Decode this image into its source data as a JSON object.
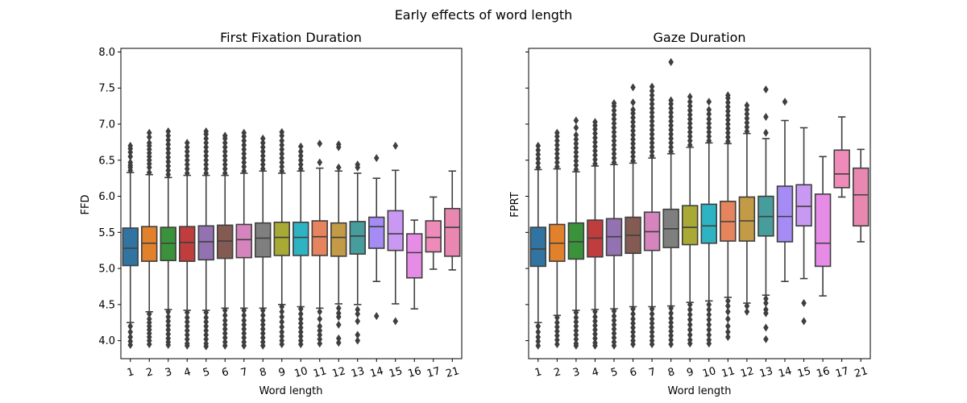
{
  "figure": {
    "title": "Early effects of word length"
  },
  "chart_data": [
    {
      "type": "box",
      "title": "First Fixation Duration",
      "xlabel": "Word length",
      "ylabel": "FFD",
      "categories": [
        "1",
        "2",
        "3",
        "4",
        "5",
        "6",
        "7",
        "8",
        "9",
        "10",
        "11",
        "12",
        "13",
        "14",
        "15",
        "16",
        "17",
        "21"
      ],
      "ylim": [
        3.75,
        8.05
      ],
      "yticks": [
        "4.0",
        "4.5",
        "5.0",
        "5.5",
        "6.0",
        "6.5",
        "7.0",
        "7.5",
        "8.0"
      ],
      "colors": [
        "#3274a1",
        "#e1812c",
        "#3a923a",
        "#c03d3e",
        "#9372b2",
        "#845b53",
        "#d684bd",
        "#7f7f7f",
        "#a9aa35",
        "#2eb3c2",
        "#e6845e",
        "#c39a45",
        "#479c9c",
        "#a48cf4",
        "#c898f2",
        "#e68ce6",
        "#ef8bb8",
        "#e888b1"
      ],
      "boxes": [
        {
          "q1": 5.04,
          "med": 5.28,
          "q3": 5.56,
          "wlo": 4.25,
          "whi": 6.33,
          "fhi": [
            6.36,
            6.4,
            6.43,
            6.47,
            6.55,
            6.61,
            6.66,
            6.7
          ],
          "flo": [
            4.2,
            4.12,
            4.05,
            3.99,
            3.94
          ]
        },
        {
          "q1": 5.1,
          "med": 5.35,
          "q3": 5.58,
          "wlo": 4.4,
          "whi": 6.3,
          "fhi": [
            6.33,
            6.4,
            6.45,
            6.5,
            6.55,
            6.6,
            6.65,
            6.7,
            6.74,
            6.82,
            6.88
          ],
          "flo": [
            4.37,
            4.3,
            4.25,
            4.2,
            4.15,
            4.1,
            4.05,
            4.0,
            3.95
          ]
        },
        {
          "q1": 5.11,
          "med": 5.35,
          "q3": 5.57,
          "wlo": 4.43,
          "whi": 6.26,
          "fhi": [
            6.3,
            6.36,
            6.42,
            6.48,
            6.54,
            6.6,
            6.66,
            6.72,
            6.78,
            6.84,
            6.9
          ],
          "flo": [
            4.4,
            4.33,
            4.27,
            4.21,
            4.15,
            4.09,
            4.03,
            3.98,
            3.94
          ]
        },
        {
          "q1": 5.1,
          "med": 5.36,
          "q3": 5.58,
          "wlo": 4.42,
          "whi": 6.29,
          "fhi": [
            6.32,
            6.38,
            6.44,
            6.5,
            6.56,
            6.62,
            6.68,
            6.74
          ],
          "flo": [
            4.39,
            4.32,
            4.26,
            4.2,
            4.14,
            4.08,
            4.02,
            3.96,
            3.93
          ]
        },
        {
          "q1": 5.12,
          "med": 5.37,
          "q3": 5.59,
          "wlo": 4.42,
          "whi": 6.29,
          "fhi": [
            6.32,
            6.38,
            6.44,
            6.5,
            6.56,
            6.62,
            6.68,
            6.74,
            6.8,
            6.86,
            6.9
          ],
          "flo": [
            4.39,
            4.32,
            4.26,
            4.2,
            4.14,
            4.08,
            4.02,
            3.96,
            3.92
          ]
        },
        {
          "q1": 5.14,
          "med": 5.38,
          "q3": 5.6,
          "wlo": 4.45,
          "whi": 6.29,
          "fhi": [
            6.32,
            6.38,
            6.44,
            6.5,
            6.56,
            6.62,
            6.68,
            6.74,
            6.8,
            6.84
          ],
          "flo": [
            4.42,
            4.35,
            4.28,
            4.22,
            4.16,
            4.1,
            4.04,
            3.98,
            3.93
          ]
        },
        {
          "q1": 5.15,
          "med": 5.4,
          "q3": 5.61,
          "wlo": 4.45,
          "whi": 6.32,
          "fhi": [
            6.35,
            6.41,
            6.47,
            6.53,
            6.59,
            6.65,
            6.71,
            6.77,
            6.83,
            6.88
          ],
          "flo": [
            4.42,
            4.35,
            4.28,
            4.22,
            4.16,
            4.1,
            4.04,
            3.98,
            3.93
          ]
        },
        {
          "q1": 5.16,
          "med": 5.42,
          "q3": 5.63,
          "wlo": 4.45,
          "whi": 6.35,
          "fhi": [
            6.38,
            6.44,
            6.5,
            6.56,
            6.62,
            6.68,
            6.74,
            6.8
          ],
          "flo": [
            4.42,
            4.35,
            4.28,
            4.22,
            4.16,
            4.1,
            4.04,
            3.98,
            3.93
          ]
        },
        {
          "q1": 5.18,
          "med": 5.43,
          "q3": 5.64,
          "wlo": 4.5,
          "whi": 6.32,
          "fhi": [
            6.35,
            6.41,
            6.47,
            6.53,
            6.59,
            6.65,
            6.71,
            6.77,
            6.84,
            6.89
          ],
          "flo": [
            4.47,
            4.4,
            4.33,
            4.26,
            4.19,
            4.12,
            4.06,
            4.0,
            3.95
          ]
        },
        {
          "q1": 5.18,
          "med": 5.43,
          "q3": 5.64,
          "wlo": 4.47,
          "whi": 6.35,
          "fhi": [
            6.38,
            6.44,
            6.5,
            6.56,
            6.62,
            6.69
          ],
          "flo": [
            4.44,
            4.37,
            4.3,
            4.24,
            4.18,
            4.12,
            4.06,
            4.0,
            3.95
          ]
        },
        {
          "q1": 5.18,
          "med": 5.44,
          "q3": 5.66,
          "wlo": 4.45,
          "whi": 6.39,
          "fhi": [
            6.47,
            6.73
          ],
          "flo": [
            4.4,
            4.3,
            4.2,
            4.14,
            4.08,
            4.02,
            3.96
          ]
        },
        {
          "q1": 5.17,
          "med": 5.43,
          "q3": 5.63,
          "wlo": 4.51,
          "whi": 6.35,
          "fhi": [
            6.4,
            6.68,
            6.72
          ],
          "flo": [
            4.45,
            4.38,
            4.33,
            4.22,
            4.03,
            3.97
          ]
        },
        {
          "q1": 5.2,
          "med": 5.45,
          "q3": 5.65,
          "wlo": 4.5,
          "whi": 6.32,
          "fhi": [
            6.4,
            6.44
          ],
          "flo": [
            4.43,
            4.37,
            4.27,
            4.08,
            4.0
          ]
        },
        {
          "q1": 5.28,
          "med": 5.58,
          "q3": 5.71,
          "wlo": 4.82,
          "whi": 6.25,
          "fhi": [
            6.53
          ],
          "flo": [
            4.34
          ]
        },
        {
          "q1": 5.25,
          "med": 5.48,
          "q3": 5.8,
          "wlo": 4.51,
          "whi": 6.36,
          "fhi": [
            6.7
          ],
          "flo": [
            4.27
          ]
        },
        {
          "q1": 4.87,
          "med": 5.22,
          "q3": 5.48,
          "wlo": 4.44,
          "whi": 5.67,
          "fhi": [],
          "flo": []
        },
        {
          "q1": 5.23,
          "med": 5.43,
          "q3": 5.66,
          "wlo": 4.99,
          "whi": 5.99,
          "fhi": [],
          "flo": []
        },
        {
          "q1": 5.17,
          "med": 5.57,
          "q3": 5.83,
          "wlo": 4.98,
          "whi": 6.35,
          "fhi": [],
          "flo": []
        }
      ]
    },
    {
      "type": "box",
      "title": "Gaze Duration",
      "xlabel": "Word length",
      "ylabel": "FPRT",
      "categories": [
        "1",
        "2",
        "3",
        "4",
        "5",
        "6",
        "7",
        "8",
        "9",
        "10",
        "11",
        "12",
        "13",
        "14",
        "15",
        "16",
        "17",
        "21"
      ],
      "ylim": [
        3.75,
        8.05
      ],
      "yticks": [
        "4.0",
        "4.5",
        "5.0",
        "5.5",
        "6.0",
        "6.5",
        "7.0",
        "7.5",
        "8.0"
      ],
      "colors": [
        "#3274a1",
        "#e1812c",
        "#3a923a",
        "#c03d3e",
        "#9372b2",
        "#845b53",
        "#d684bd",
        "#7f7f7f",
        "#a9aa35",
        "#2eb3c2",
        "#e6845e",
        "#c39a45",
        "#479c9c",
        "#a48cf4",
        "#c898f2",
        "#e68ce6",
        "#ef8bb8",
        "#e888b1"
      ],
      "boxes": [
        {
          "q1": 5.03,
          "med": 5.27,
          "q3": 5.57,
          "wlo": 4.25,
          "whi": 6.37,
          "fhi": [
            6.4,
            6.46,
            6.52,
            6.58,
            6.64,
            6.7
          ],
          "flo": [
            4.2,
            4.12,
            4.05,
            3.99,
            3.93
          ]
        },
        {
          "q1": 5.1,
          "med": 5.35,
          "q3": 5.61,
          "wlo": 4.35,
          "whi": 6.38,
          "fhi": [
            6.41,
            6.47,
            6.53,
            6.59,
            6.65,
            6.71,
            6.77,
            6.83,
            6.88
          ],
          "flo": [
            4.32,
            4.25,
            4.19,
            4.13,
            4.07,
            4.01,
            3.95
          ]
        },
        {
          "q1": 5.13,
          "med": 5.37,
          "q3": 5.63,
          "wlo": 4.42,
          "whi": 6.34,
          "fhi": [
            6.37,
            6.43,
            6.49,
            6.55,
            6.61,
            6.67,
            6.73,
            6.79,
            6.85,
            6.95,
            7.05
          ],
          "flo": [
            4.39,
            4.32,
            4.26,
            4.2,
            4.14,
            4.08,
            4.02,
            3.96,
            3.93
          ]
        },
        {
          "q1": 5.16,
          "med": 5.42,
          "q3": 5.67,
          "wlo": 4.43,
          "whi": 6.42,
          "fhi": [
            6.45,
            6.51,
            6.57,
            6.63,
            6.69,
            6.75,
            6.81,
            6.87,
            6.93,
            6.98,
            7.03
          ],
          "flo": [
            4.4,
            4.33,
            4.27,
            4.21,
            4.15,
            4.09,
            4.03,
            3.97,
            3.93
          ]
        },
        {
          "q1": 5.18,
          "med": 5.44,
          "q3": 5.69,
          "wlo": 4.44,
          "whi": 6.44,
          "fhi": [
            6.47,
            6.53,
            6.59,
            6.65,
            6.71,
            6.77,
            6.83,
            6.89,
            6.95,
            7.01,
            7.07,
            7.13,
            7.19,
            7.25,
            7.29
          ],
          "flo": [
            4.41,
            4.34,
            4.28,
            4.22,
            4.16,
            4.1,
            4.04,
            3.98,
            3.93
          ]
        },
        {
          "q1": 5.21,
          "med": 5.46,
          "q3": 5.71,
          "wlo": 4.47,
          "whi": 6.46,
          "fhi": [
            6.49,
            6.55,
            6.61,
            6.67,
            6.73,
            6.79,
            6.85,
            6.91,
            6.97,
            7.03,
            7.09,
            7.15,
            7.2,
            7.3,
            7.51
          ],
          "flo": [
            4.44,
            4.37,
            4.3,
            4.24,
            4.18,
            4.12,
            4.06,
            4.0,
            3.95
          ]
        },
        {
          "q1": 5.25,
          "med": 5.51,
          "q3": 5.78,
          "wlo": 4.47,
          "whi": 6.53,
          "fhi": [
            6.56,
            6.62,
            6.68,
            6.74,
            6.8,
            6.86,
            6.92,
            6.98,
            7.04,
            7.1,
            7.16,
            7.22,
            7.28,
            7.34,
            7.4,
            7.46,
            7.52
          ],
          "flo": [
            4.44,
            4.37,
            4.3,
            4.24,
            4.18,
            4.12,
            4.06,
            4.0,
            3.95
          ]
        },
        {
          "q1": 5.29,
          "med": 5.55,
          "q3": 5.82,
          "wlo": 4.48,
          "whi": 6.59,
          "fhi": [
            6.62,
            6.68,
            6.74,
            6.8,
            6.86,
            6.92,
            6.98,
            7.04,
            7.1,
            7.16,
            7.22,
            7.28,
            7.33,
            7.86
          ],
          "flo": [
            4.45,
            4.38,
            4.31,
            4.25,
            4.19,
            4.13,
            4.07,
            4.01,
            3.95
          ]
        },
        {
          "q1": 5.33,
          "med": 5.57,
          "q3": 5.87,
          "wlo": 4.53,
          "whi": 6.68,
          "fhi": [
            6.71,
            6.77,
            6.83,
            6.89,
            6.95,
            7.01,
            7.07,
            7.13,
            7.19,
            7.25,
            7.31,
            7.38
          ],
          "flo": [
            4.5,
            4.43,
            4.36,
            4.29,
            4.22,
            4.15,
            4.08,
            4.01,
            3.96
          ]
        },
        {
          "q1": 5.35,
          "med": 5.59,
          "q3": 5.89,
          "wlo": 4.55,
          "whi": 6.74,
          "fhi": [
            6.77,
            6.83,
            6.89,
            6.95,
            7.01,
            7.07,
            7.14,
            7.2,
            7.31
          ],
          "flo": [
            4.5,
            4.43,
            4.36,
            4.29,
            4.22,
            4.15,
            4.08,
            4.01,
            3.96
          ]
        },
        {
          "q1": 5.38,
          "med": 5.65,
          "q3": 5.93,
          "wlo": 4.6,
          "whi": 6.73,
          "fhi": [
            6.76,
            6.82,
            6.88,
            6.94,
            7.0,
            7.06,
            7.12,
            7.18,
            7.24,
            7.3,
            7.36,
            7.4
          ],
          "flo": [
            4.55,
            4.48,
            4.4,
            4.3,
            4.2,
            4.12,
            4.05
          ]
        },
        {
          "q1": 5.38,
          "med": 5.66,
          "q3": 5.99,
          "wlo": 4.52,
          "whi": 6.87,
          "fhi": [
            6.9,
            6.96,
            7.02,
            7.08,
            7.14,
            7.2,
            7.26
          ],
          "flo": [
            4.48,
            4.4
          ]
        },
        {
          "q1": 5.45,
          "med": 5.72,
          "q3": 6.0,
          "wlo": 4.63,
          "whi": 6.8,
          "fhi": [
            6.88,
            7.1,
            7.48
          ],
          "flo": [
            4.58,
            4.52,
            4.43,
            4.38,
            4.18,
            4.02
          ]
        },
        {
          "q1": 5.37,
          "med": 5.72,
          "q3": 6.14,
          "wlo": 4.82,
          "whi": 7.05,
          "fhi": [
            7.31
          ],
          "flo": []
        },
        {
          "q1": 5.59,
          "med": 5.86,
          "q3": 6.16,
          "wlo": 4.86,
          "whi": 6.95,
          "fhi": [],
          "flo": [
            4.52,
            4.27
          ]
        },
        {
          "q1": 5.03,
          "med": 5.35,
          "q3": 6.03,
          "wlo": 4.62,
          "whi": 6.55,
          "fhi": [],
          "flo": []
        },
        {
          "q1": 6.12,
          "med": 6.31,
          "q3": 6.64,
          "wlo": 5.99,
          "whi": 7.1,
          "fhi": [],
          "flo": []
        },
        {
          "q1": 5.59,
          "med": 6.02,
          "q3": 6.39,
          "wlo": 5.37,
          "whi": 6.65,
          "fhi": [],
          "flo": []
        }
      ]
    }
  ]
}
